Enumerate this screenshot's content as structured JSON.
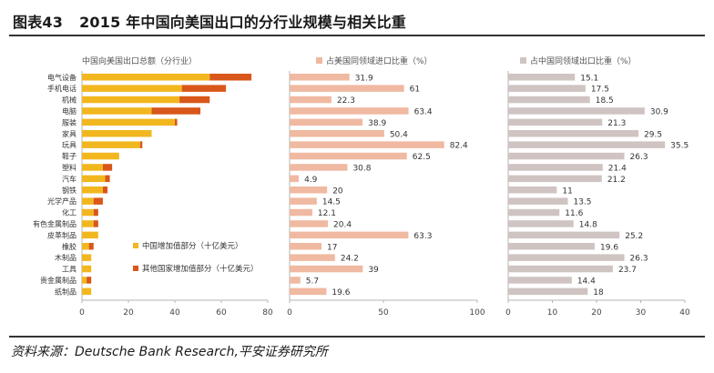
{
  "title_prefix": "图表43",
  "title_text": "2015 年中国向美国出口的分行业规模与相关比重",
  "source": "资料来源：Deutsche Bank Research,平安证券研究所",
  "colors": {
    "china_bar": "#f2b71f",
    "foreign_bar": "#d9571a",
    "pct_us": "#f0b9a1",
    "pct_china": "#cfc4c2",
    "axis": "#b5b5b5"
  },
  "chart_data": [
    {
      "type": "bar",
      "stacked": true,
      "orientation": "horizontal",
      "title": "中国向美国出口总额（分行业）",
      "categories": [
        "电气设备",
        "手机电话",
        "机械",
        "电脑",
        "服装",
        "家具",
        "玩具",
        "鞋子",
        "塑料",
        "汽车",
        "钢铁",
        "光学产品",
        "化工",
        "有色金属制品",
        "皮革制品",
        "橡胶",
        "木制品",
        "工具",
        "贵金属制品",
        "纸制品"
      ],
      "series": [
        {
          "name": "中国增加值部分（十亿美元）",
          "values": [
            55,
            43,
            42,
            30,
            40,
            30,
            25,
            16,
            9,
            10,
            9,
            5,
            5,
            5,
            7,
            3,
            4,
            4,
            2,
            4
          ]
        },
        {
          "name": "其他国家增加值部分（十亿美元）",
          "values": [
            18,
            19,
            13,
            21,
            1,
            0,
            1,
            0,
            4,
            2,
            2,
            4,
            2,
            2,
            0,
            2,
            0,
            0,
            2,
            0
          ]
        }
      ],
      "xlim": [
        0,
        80
      ],
      "xticks": [
        "0",
        "20",
        "40",
        "60",
        "80"
      ],
      "legend": "bottom-right"
    },
    {
      "type": "bar",
      "orientation": "horizontal",
      "title": "占美国同领域进口比重（%）",
      "categories": [
        "电气设备",
        "手机电话",
        "机械",
        "电脑",
        "服装",
        "家具",
        "玩具",
        "鞋子",
        "塑料",
        "汽车",
        "钢铁",
        "光学产品",
        "化工",
        "有色金属制品",
        "皮革制品",
        "橡胶",
        "木制品",
        "工具",
        "贵金属制品",
        "纸制品"
      ],
      "values": [
        31.9,
        61,
        22.3,
        63.4,
        38.9,
        50.4,
        82.4,
        62.5,
        30.8,
        4.9,
        20,
        14.5,
        12.1,
        20.4,
        63.3,
        17,
        24.2,
        39,
        5.7,
        19.6
      ],
      "value_labels": [
        "31.9",
        "61",
        "22.3",
        "63.4",
        "38.9",
        "50.4",
        "82.4",
        "62.5",
        "30.8",
        "4.9",
        "20",
        "14.5",
        "12.1",
        "20.4",
        "63.3",
        "17",
        "24.2",
        "39",
        "5.7",
        "19.6"
      ],
      "xlim": [
        0,
        100
      ],
      "xticks": [
        "0",
        "50",
        "100"
      ]
    },
    {
      "type": "bar",
      "orientation": "horizontal",
      "title": "占中国同领域出口比重（%）",
      "categories": [
        "电气设备",
        "手机电话",
        "机械",
        "电脑",
        "服装",
        "家具",
        "玩具",
        "鞋子",
        "塑料",
        "汽车",
        "钢铁",
        "光学产品",
        "化工",
        "有色金属制品",
        "皮革制品",
        "橡胶",
        "木制品",
        "工具",
        "贵金属制品",
        "纸制品"
      ],
      "values": [
        15.1,
        17.5,
        18.5,
        30.9,
        21.3,
        29.5,
        35.5,
        26.3,
        21.4,
        21.2,
        11,
        13.5,
        11.6,
        14.8,
        25.2,
        19.6,
        26.3,
        23.7,
        14.4,
        18
      ],
      "value_labels": [
        "15.1",
        "17.5",
        "18.5",
        "30.9",
        "21.3",
        "29.5",
        "35.5",
        "26.3",
        "21.4",
        "21.2",
        "11",
        "13.5",
        "11.6",
        "14.8",
        "25.2",
        "19.6",
        "26.3",
        "23.7",
        "14.4",
        "18"
      ],
      "xlim": [
        0,
        40
      ],
      "xticks": [
        "0",
        "10",
        "20",
        "30",
        "40"
      ]
    }
  ]
}
